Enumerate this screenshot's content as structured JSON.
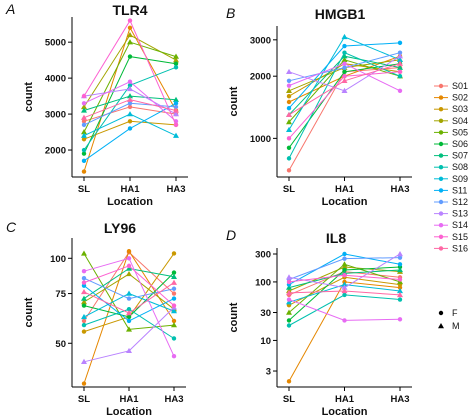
{
  "legend": {
    "subjects": [
      {
        "label": "S01",
        "color": "#f8766d"
      },
      {
        "label": "S02",
        "color": "#e58700"
      },
      {
        "label": "S03",
        "color": "#c99800"
      },
      {
        "label": "S04",
        "color": "#a3a500"
      },
      {
        "label": "S05",
        "color": "#6bb100"
      },
      {
        "label": "S06",
        "color": "#00ba38"
      },
      {
        "label": "S07",
        "color": "#00bf7d"
      },
      {
        "label": "S08",
        "color": "#00c0af"
      },
      {
        "label": "S09",
        "color": "#00bcd8"
      },
      {
        "label": "S11",
        "color": "#00b0f6"
      },
      {
        "label": "S12",
        "color": "#619cff"
      },
      {
        "label": "S13",
        "color": "#b983ff"
      },
      {
        "label": "S14",
        "color": "#e76bf3"
      },
      {
        "label": "S15",
        "color": "#fd61d1"
      },
      {
        "label": "S16",
        "color": "#ff67a4"
      }
    ],
    "sex": [
      {
        "label": "F",
        "shape": "circle"
      },
      {
        "label": "M",
        "shape": "triangle"
      }
    ]
  },
  "chart_data": [
    {
      "type": "line",
      "letter": "A",
      "title": "TLR4",
      "xlabel": "Location",
      "ylabel": "count",
      "categories": [
        "SL",
        "HA1",
        "HA3"
      ],
      "scale": "linear",
      "ylim": [
        1250,
        5700
      ],
      "yticks": [
        2000,
        3000,
        4000,
        5000
      ],
      "sex_by_subject": [
        "circle",
        "circle",
        "circle",
        "triangle",
        "triangle",
        "circle",
        "triangle",
        "circle",
        "triangle",
        "circle",
        "circle",
        "triangle",
        "circle",
        "circle",
        "triangle"
      ],
      "series": [
        {
          "name": "S01",
          "values": [
            2800,
            3200,
            3000
          ]
        },
        {
          "name": "S02",
          "values": [
            1400,
            5400,
            3100
          ]
        },
        {
          "name": "S03",
          "values": [
            2300,
            2800,
            2700
          ]
        },
        {
          "name": "S04",
          "values": [
            3200,
            5200,
            4500
          ]
        },
        {
          "name": "S05",
          "values": [
            2500,
            5000,
            4600
          ]
        },
        {
          "name": "S06",
          "values": [
            1900,
            4600,
            4400
          ]
        },
        {
          "name": "S07",
          "values": [
            3100,
            3500,
            3400
          ]
        },
        {
          "name": "S08",
          "values": [
            2000,
            3800,
            4300
          ]
        },
        {
          "name": "S09",
          "values": [
            2400,
            3000,
            2400
          ]
        },
        {
          "name": "S11",
          "values": [
            1700,
            2600,
            3300
          ]
        },
        {
          "name": "S12",
          "values": [
            2700,
            3300,
            3200
          ]
        },
        {
          "name": "S13",
          "values": [
            3500,
            3700,
            3000
          ]
        },
        {
          "name": "S14",
          "values": [
            3300,
            3900,
            2800
          ]
        },
        {
          "name": "S15",
          "values": [
            3500,
            5600,
            2700
          ]
        },
        {
          "name": "S16",
          "values": [
            2900,
            3400,
            3100
          ]
        }
      ]
    },
    {
      "type": "line",
      "letter": "B",
      "title": "HMGB1",
      "xlabel": "Location",
      "ylabel": "count",
      "categories": [
        "SL",
        "HA1",
        "HA3"
      ],
      "scale": "log",
      "ylim": [
        650,
        3500
      ],
      "yticks": [
        1000,
        2000,
        3000
      ],
      "sex_by_subject": [
        "circle",
        "circle",
        "circle",
        "triangle",
        "triangle",
        "circle",
        "triangle",
        "circle",
        "triangle",
        "circle",
        "circle",
        "triangle",
        "circle",
        "circle",
        "triangle"
      ],
      "series": [
        {
          "name": "S01",
          "values": [
            700,
            2100,
            2200
          ]
        },
        {
          "name": "S02",
          "values": [
            1500,
            2000,
            2500
          ]
        },
        {
          "name": "S03",
          "values": [
            1600,
            2300,
            2100
          ]
        },
        {
          "name": "S04",
          "values": [
            1700,
            2200,
            2400
          ]
        },
        {
          "name": "S05",
          "values": [
            1200,
            2400,
            2000
          ]
        },
        {
          "name": "S06",
          "values": [
            900,
            2100,
            2300
          ]
        },
        {
          "name": "S07",
          "values": [
            1300,
            2500,
            2200
          ]
        },
        {
          "name": "S08",
          "values": [
            800,
            2600,
            2000
          ]
        },
        {
          "name": "S09",
          "values": [
            1100,
            3100,
            2400
          ]
        },
        {
          "name": "S11",
          "values": [
            1400,
            2800,
            2900
          ]
        },
        {
          "name": "S12",
          "values": [
            1900,
            2200,
            2600
          ]
        },
        {
          "name": "S13",
          "values": [
            2100,
            1700,
            2500
          ]
        },
        {
          "name": "S14",
          "values": [
            1800,
            2300,
            1700
          ]
        },
        {
          "name": "S15",
          "values": [
            1000,
            2000,
            2100
          ]
        },
        {
          "name": "S16",
          "values": [
            1300,
            1900,
            2300
          ]
        }
      ]
    },
    {
      "type": "line",
      "letter": "C",
      "title": "LY96",
      "xlabel": "Location",
      "ylabel": "count",
      "categories": [
        "SL",
        "HA1",
        "HA3"
      ],
      "scale": "log",
      "ylim": [
        35,
        118
      ],
      "yticks": [
        50,
        75,
        100
      ],
      "yticklabels": [
        "50",
        "75",
        "100"
      ],
      "sex_by_subject": [
        "circle",
        "circle",
        "circle",
        "triangle",
        "triangle",
        "circle",
        "triangle",
        "circle",
        "triangle",
        "circle",
        "circle",
        "triangle",
        "circle",
        "circle",
        "triangle"
      ],
      "series": [
        {
          "name": "S01",
          "values": [
            60,
            105,
            75
          ]
        },
        {
          "name": "S02",
          "values": [
            36,
            106,
            60
          ]
        },
        {
          "name": "S03",
          "values": [
            55,
            62,
            104
          ]
        },
        {
          "name": "S04",
          "values": [
            70,
            88,
            66
          ]
        },
        {
          "name": "S05",
          "values": [
            104,
            56,
            58
          ]
        },
        {
          "name": "S06",
          "values": [
            68,
            62,
            89
          ]
        },
        {
          "name": "S07",
          "values": [
            72,
            92,
            86
          ]
        },
        {
          "name": "S08",
          "values": [
            58,
            66,
            52
          ]
        },
        {
          "name": "S09",
          "values": [
            62,
            75,
            65
          ]
        },
        {
          "name": "S11",
          "values": [
            80,
            60,
            72
          ]
        },
        {
          "name": "S12",
          "values": [
            85,
            72,
            78
          ]
        },
        {
          "name": "S13",
          "values": [
            43,
            47,
            67
          ]
        },
        {
          "name": "S14",
          "values": [
            90,
            100,
            45
          ]
        },
        {
          "name": "S15",
          "values": [
            82,
            94,
            68
          ]
        },
        {
          "name": "S16",
          "values": [
            76,
            64,
            82
          ]
        }
      ]
    },
    {
      "type": "line",
      "letter": "D",
      "title": "IL8",
      "xlabel": "Location",
      "ylabel": "count",
      "categories": [
        "SL",
        "HA1",
        "HA3"
      ],
      "scale": "log",
      "ylim": [
        1.6,
        380
      ],
      "yticks": [
        3,
        10,
        30,
        100,
        300
      ],
      "sex_by_subject": [
        "circle",
        "circle",
        "circle",
        "triangle",
        "triangle",
        "circle",
        "triangle",
        "circle",
        "triangle",
        "circle",
        "circle",
        "triangle",
        "circle",
        "circle",
        "triangle"
      ],
      "series": [
        {
          "name": "S01",
          "values": [
            60,
            150,
            120
          ]
        },
        {
          "name": "S02",
          "values": [
            2,
            100,
            80
          ]
        },
        {
          "name": "S03",
          "values": [
            40,
            120,
            90
          ]
        },
        {
          "name": "S04",
          "values": [
            70,
            180,
            150
          ]
        },
        {
          "name": "S05",
          "values": [
            30,
            200,
            100
          ]
        },
        {
          "name": "S06",
          "values": [
            22,
            160,
            180
          ]
        },
        {
          "name": "S07",
          "values": [
            80,
            140,
            160
          ]
        },
        {
          "name": "S08",
          "values": [
            18,
            60,
            50
          ]
        },
        {
          "name": "S09",
          "values": [
            45,
            90,
            70
          ]
        },
        {
          "name": "S11",
          "values": [
            90,
            300,
            200
          ]
        },
        {
          "name": "S12",
          "values": [
            110,
            250,
            260
          ]
        },
        {
          "name": "S13",
          "values": [
            120,
            80,
            300
          ]
        },
        {
          "name": "S14",
          "values": [
            50,
            22,
            23
          ]
        },
        {
          "name": "S15",
          "values": [
            100,
            130,
            110
          ]
        },
        {
          "name": "S16",
          "values": [
            65,
            70,
            60
          ]
        }
      ]
    }
  ]
}
